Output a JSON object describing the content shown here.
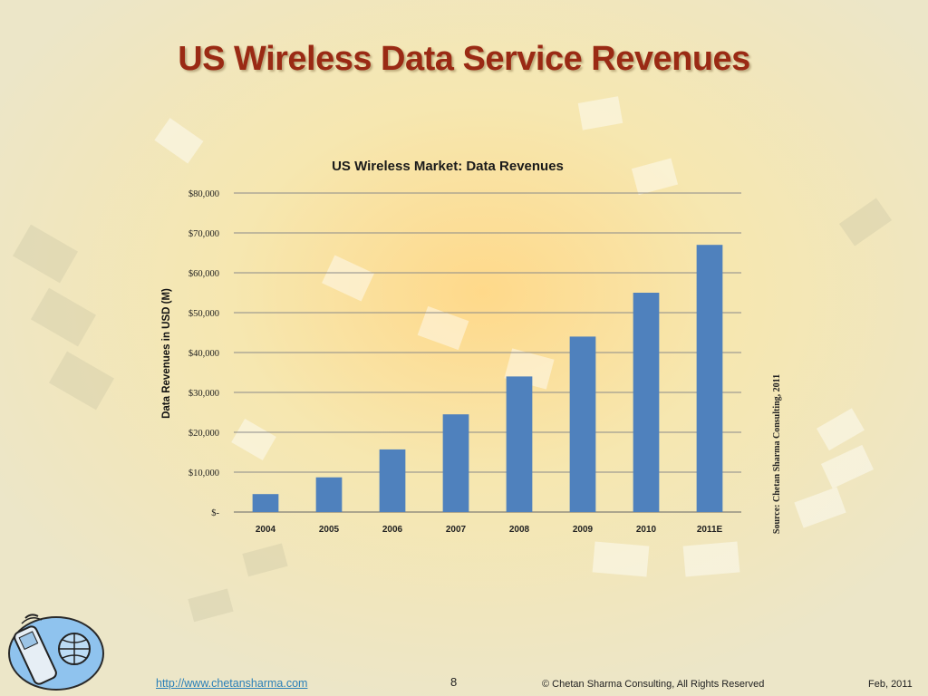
{
  "slide": {
    "title": "US Wireless Data Service Revenues"
  },
  "chart_data": {
    "type": "bar",
    "title": "US Wireless Market: Data Revenues",
    "ylabel": "Data Revenues in USD (M)",
    "xlabel": "",
    "categories": [
      "2004",
      "2005",
      "2006",
      "2007",
      "2008",
      "2009",
      "2010",
      "2011E"
    ],
    "values": [
      4500,
      8700,
      15700,
      24500,
      34000,
      44000,
      55000,
      67000
    ],
    "ylim": [
      0,
      80000
    ],
    "yticks": [
      {
        "value": 0,
        "label": "$-"
      },
      {
        "value": 10000,
        "label": "$10,000"
      },
      {
        "value": 20000,
        "label": "$20,000"
      },
      {
        "value": 30000,
        "label": "$30,000"
      },
      {
        "value": 40000,
        "label": "$40,000"
      },
      {
        "value": 50000,
        "label": "$50,000"
      },
      {
        "value": 60000,
        "label": "$60,000"
      },
      {
        "value": 70000,
        "label": "$70,000"
      },
      {
        "value": 80000,
        "label": "$80,000"
      }
    ],
    "grid": true,
    "bar_color": "#4f81bd",
    "source": "Source: Chetan Sharma Consulting, 2011"
  },
  "footer": {
    "link": "http://www.chetansharma.com",
    "page_number": "8",
    "copyright": "© Chetan Sharma Consulting, All Rights Reserved",
    "date": "Feb, 2011"
  },
  "colors": {
    "title": "#9a2a14",
    "link": "#2a7fb8",
    "bar": "#4f81bd"
  },
  "icons": {
    "logo": "phone-globe-logo-icon"
  }
}
